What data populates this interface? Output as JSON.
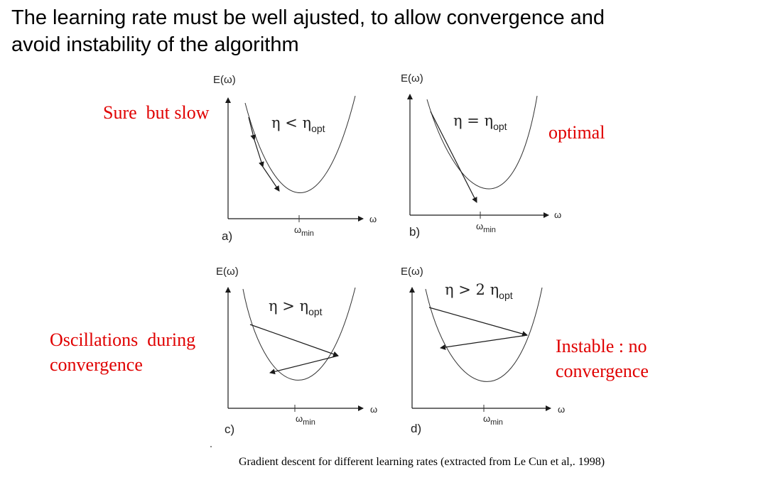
{
  "slide": {
    "title_line1": "The learning rate must be well ajusted, to allow convergence and",
    "title_line2": "avoid instability of the algorithm",
    "caption": "Gradient descent for different learning rates (extracted from Le Cun et al,. 1998)"
  },
  "notes": {
    "a": "Sure  but slow",
    "b": "optimal",
    "c_line1": "Oscillations  during",
    "c_line2": "convergence",
    "d_line1": "Instable : no",
    "d_line2": "convergence"
  },
  "panels": {
    "a": {
      "label": "a)",
      "y_axis": "E(ω)",
      "x_axis": "ω",
      "min_main": "ω",
      "min_sub": "min",
      "eta_main": "η < η",
      "eta_sub": "opt"
    },
    "b": {
      "label": "b)",
      "y_axis": "E(ω)",
      "x_axis": "ω",
      "min_main": "ω",
      "min_sub": "min",
      "eta_main": "η = η",
      "eta_sub": "opt"
    },
    "c": {
      "label": "c)",
      "y_axis": "E(ω)",
      "x_axis": "ω",
      "min_main": "ω",
      "min_sub": "min",
      "eta_main": "η > η",
      "eta_sub": "opt"
    },
    "d": {
      "label": "d)",
      "y_axis": "E(ω)",
      "x_axis": "ω",
      "min_main": "ω",
      "min_sub": "min",
      "eta_main": "η > 2 η",
      "eta_sub": "opt"
    }
  },
  "colors": {
    "note": "#e00000",
    "stroke": "#1a1a1a"
  }
}
